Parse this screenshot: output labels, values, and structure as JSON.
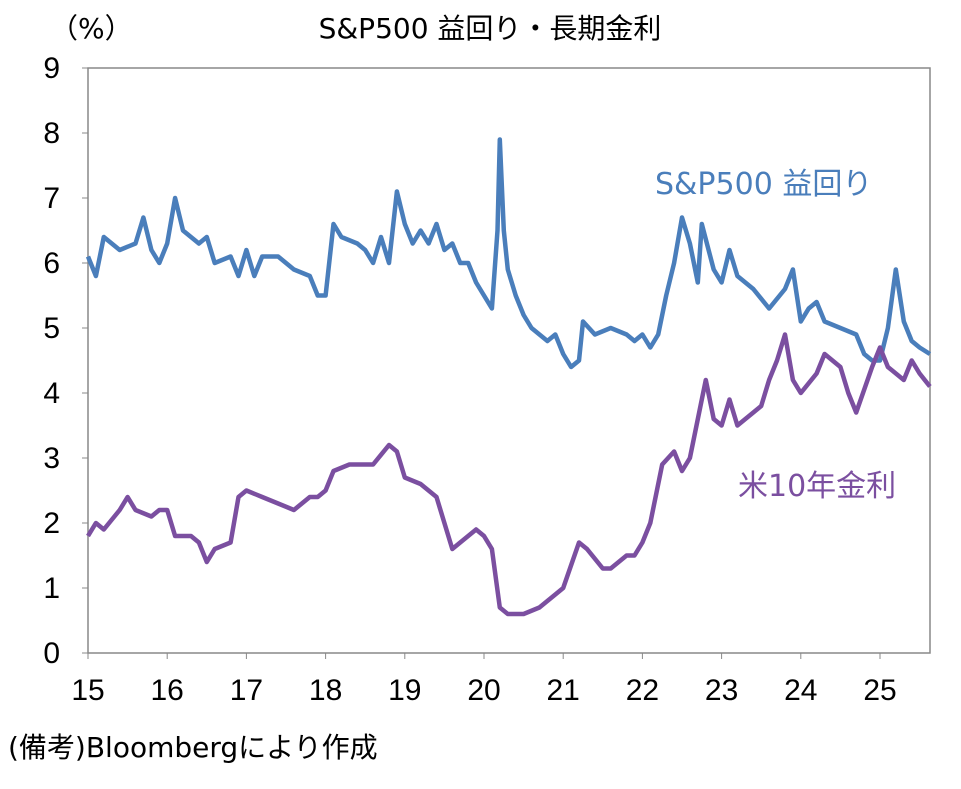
{
  "chart_data": {
    "type": "line",
    "title": "S&P500 益回り・長期金利",
    "ylabel": "（%）",
    "source": "(備考)Bloombergにより作成",
    "ylim": [
      0,
      9
    ],
    "xlim": [
      2015,
      2025.65
    ],
    "yticks": [
      "0",
      "1",
      "2",
      "3",
      "4",
      "5",
      "6",
      "7",
      "8",
      "9"
    ],
    "xticks": [
      "15",
      "16",
      "17",
      "18",
      "19",
      "20",
      "21",
      "22",
      "23",
      "24",
      "25"
    ],
    "grid": false,
    "series": [
      {
        "name": "S&P500 益回り",
        "color": "#4a7ebb",
        "x": [
          2015.0,
          2015.1,
          2015.2,
          2015.4,
          2015.6,
          2015.7,
          2015.8,
          2015.9,
          2016.0,
          2016.1,
          2016.2,
          2016.4,
          2016.5,
          2016.6,
          2016.8,
          2016.9,
          2017.0,
          2017.1,
          2017.2,
          2017.4,
          2017.6,
          2017.8,
          2017.9,
          2018.0,
          2018.1,
          2018.2,
          2018.4,
          2018.5,
          2018.6,
          2018.7,
          2018.8,
          2018.9,
          2019.0,
          2019.1,
          2019.2,
          2019.3,
          2019.4,
          2019.5,
          2019.6,
          2019.7,
          2019.8,
          2019.9,
          2020.0,
          2020.1,
          2020.17,
          2020.2,
          2020.25,
          2020.3,
          2020.4,
          2020.5,
          2020.6,
          2020.8,
          2020.9,
          2021.0,
          2021.1,
          2021.2,
          2021.25,
          2021.4,
          2021.6,
          2021.8,
          2021.9,
          2022.0,
          2022.1,
          2022.2,
          2022.3,
          2022.4,
          2022.5,
          2022.6,
          2022.7,
          2022.75,
          2022.9,
          2023.0,
          2023.1,
          2023.2,
          2023.4,
          2023.6,
          2023.8,
          2023.9,
          2024.0,
          2024.1,
          2024.2,
          2024.3,
          2024.5,
          2024.7,
          2024.8,
          2024.9,
          2025.0,
          2025.1,
          2025.2,
          2025.3,
          2025.4,
          2025.5,
          2025.63
        ],
        "y": [
          6.1,
          5.8,
          6.4,
          6.2,
          6.3,
          6.7,
          6.2,
          6.0,
          6.3,
          7.0,
          6.5,
          6.3,
          6.4,
          6.0,
          6.1,
          5.8,
          6.2,
          5.8,
          6.1,
          6.1,
          5.9,
          5.8,
          5.5,
          5.5,
          6.6,
          6.4,
          6.3,
          6.2,
          6.0,
          6.4,
          6.0,
          7.1,
          6.6,
          6.3,
          6.5,
          6.3,
          6.6,
          6.2,
          6.3,
          6.0,
          6.0,
          5.7,
          5.5,
          5.3,
          6.5,
          7.9,
          6.5,
          5.9,
          5.5,
          5.2,
          5.0,
          4.8,
          4.9,
          4.6,
          4.4,
          4.5,
          5.1,
          4.9,
          5.0,
          4.9,
          4.8,
          4.9,
          4.7,
          4.9,
          5.5,
          6.0,
          6.7,
          6.3,
          5.7,
          6.6,
          5.9,
          5.7,
          6.2,
          5.8,
          5.6,
          5.3,
          5.6,
          5.9,
          5.1,
          5.3,
          5.4,
          5.1,
          5.0,
          4.9,
          4.6,
          4.5,
          4.5,
          5.0,
          5.9,
          5.1,
          4.8,
          4.7,
          4.6
        ]
      },
      {
        "name": "米10年金利",
        "color": "#7b4fa0",
        "x": [
          2015.0,
          2015.1,
          2015.2,
          2015.4,
          2015.5,
          2015.6,
          2015.8,
          2015.9,
          2016.0,
          2016.1,
          2016.3,
          2016.4,
          2016.5,
          2016.6,
          2016.8,
          2016.9,
          2017.0,
          2017.2,
          2017.4,
          2017.6,
          2017.8,
          2017.9,
          2018.0,
          2018.1,
          2018.3,
          2018.5,
          2018.6,
          2018.8,
          2018.9,
          2019.0,
          2019.2,
          2019.4,
          2019.5,
          2019.6,
          2019.7,
          2019.9,
          2020.0,
          2020.1,
          2020.2,
          2020.3,
          2020.5,
          2020.7,
          2020.9,
          2021.0,
          2021.2,
          2021.3,
          2021.5,
          2021.6,
          2021.8,
          2021.9,
          2022.0,
          2022.1,
          2022.25,
          2022.4,
          2022.5,
          2022.6,
          2022.75,
          2022.8,
          2022.9,
          2023.0,
          2023.1,
          2023.2,
          2023.4,
          2023.5,
          2023.6,
          2023.7,
          2023.8,
          2023.9,
          2024.0,
          2024.2,
          2024.3,
          2024.5,
          2024.6,
          2024.7,
          2024.9,
          2025.0,
          2025.1,
          2025.3,
          2025.4,
          2025.5,
          2025.63
        ],
        "y": [
          1.8,
          2.0,
          1.9,
          2.2,
          2.4,
          2.2,
          2.1,
          2.2,
          2.2,
          1.8,
          1.8,
          1.7,
          1.4,
          1.6,
          1.7,
          2.4,
          2.5,
          2.4,
          2.3,
          2.2,
          2.4,
          2.4,
          2.5,
          2.8,
          2.9,
          2.9,
          2.9,
          3.2,
          3.1,
          2.7,
          2.6,
          2.4,
          2.0,
          1.6,
          1.7,
          1.9,
          1.8,
          1.6,
          0.7,
          0.6,
          0.6,
          0.7,
          0.9,
          1.0,
          1.7,
          1.6,
          1.3,
          1.3,
          1.5,
          1.5,
          1.7,
          2.0,
          2.9,
          3.1,
          2.8,
          3.0,
          3.9,
          4.2,
          3.6,
          3.5,
          3.9,
          3.5,
          3.7,
          3.8,
          4.2,
          4.5,
          4.9,
          4.2,
          4.0,
          4.3,
          4.6,
          4.4,
          4.0,
          3.7,
          4.4,
          4.7,
          4.4,
          4.2,
          4.5,
          4.3,
          4.1
        ]
      }
    ]
  }
}
